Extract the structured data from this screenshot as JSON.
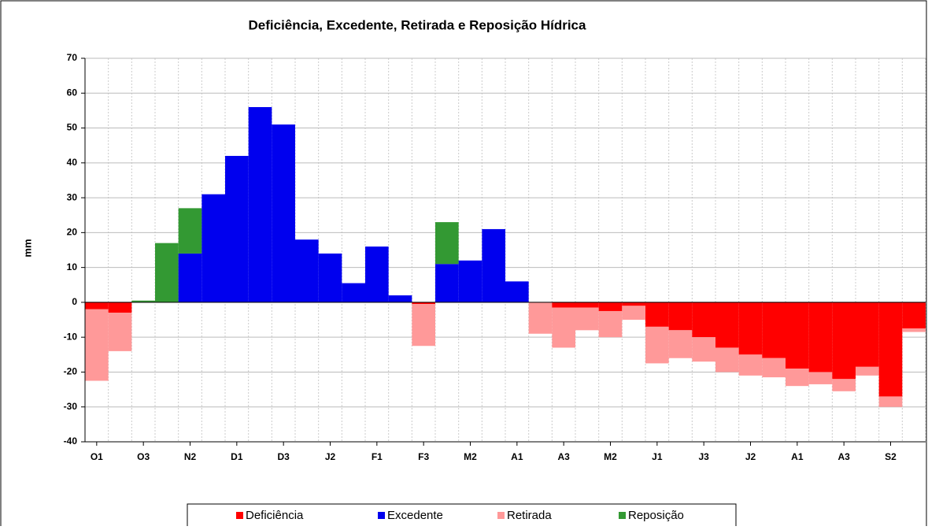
{
  "chart_data": {
    "type": "stacked_bar",
    "title": "Deficiência, Excedente, Retirada e Reposição Hídrica",
    "y_label": "mm",
    "categories": [
      "O1",
      null,
      "O3",
      null,
      "N2",
      null,
      "D1",
      null,
      "D3",
      null,
      "J2",
      null,
      "F1",
      null,
      "F3",
      null,
      "M2",
      null,
      "A1",
      null,
      "A3",
      null,
      "M2",
      null,
      "J1",
      null,
      "J3",
      null,
      "J2",
      null,
      "A1",
      null,
      "A3",
      null,
      "S2",
      null
    ],
    "series": [
      {
        "name": "Deficiência",
        "color": "#ff0000",
        "values": [
          -2,
          -3,
          0,
          0,
          0,
          0,
          0,
          0,
          0,
          0,
          0,
          0,
          0,
          0,
          -0.5,
          0,
          0,
          0,
          0,
          0,
          -1.5,
          -1.5,
          -2.5,
          -1,
          -7,
          -8,
          -10,
          -13,
          -15,
          -16,
          -19,
          -20,
          -22,
          -18.5,
          -27,
          -7.5
        ]
      },
      {
        "name": "Excedente",
        "color": "#0000ee",
        "values": [
          0,
          0,
          0,
          0,
          14,
          31,
          42,
          56,
          51,
          18,
          14,
          5.5,
          16,
          2,
          0,
          11,
          12,
          21,
          6,
          0,
          0,
          0,
          0,
          0,
          0,
          0,
          0,
          0,
          0,
          0,
          0,
          0,
          0,
          0,
          0,
          0
        ]
      },
      {
        "name": "Retirada",
        "color": "#ff9999",
        "values": [
          -20.5,
          -11,
          0,
          0,
          0,
          0,
          0,
          0,
          0,
          0,
          0,
          0,
          0,
          0,
          -12,
          0,
          0,
          0,
          0,
          -9,
          -11.5,
          -6.5,
          -7.5,
          -4,
          -10.5,
          -8,
          -7,
          -7,
          -6,
          -5.5,
          -5,
          -3.5,
          -3.5,
          -2.5,
          -3,
          -1
        ]
      },
      {
        "name": "Reposição",
        "color": "#339933",
        "values": [
          0,
          0,
          0.5,
          17,
          13,
          0,
          0,
          0,
          0,
          0,
          0,
          0,
          0,
          0,
          0,
          12,
          0,
          0,
          0,
          0,
          0,
          0,
          0,
          0,
          0,
          0,
          0,
          0,
          0,
          0,
          0,
          0,
          0,
          0,
          0,
          0
        ]
      }
    ],
    "ylim": [
      -40,
      70
    ],
    "yticks": [
      -40,
      -30,
      -20,
      -10,
      0,
      10,
      20,
      30,
      40,
      50,
      60,
      70
    ],
    "grid": true,
    "legend": "bottom"
  }
}
